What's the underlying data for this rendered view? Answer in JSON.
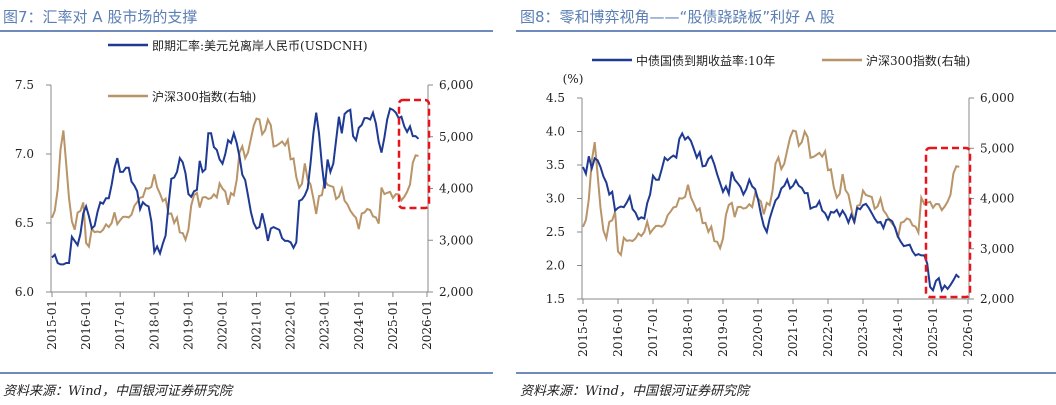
{
  "charts": [
    {
      "title": "图7：汇率对 A 股市场的支撑",
      "source": "资料来源：Wind，中国银河证券研究院"
    },
    {
      "title": "图8：零和博弈视角——“股债跷跷板”利好 A 股",
      "source": "资料来源：Wind，中国银河证券研究院"
    }
  ],
  "chart_data": [
    {
      "type": "line",
      "title": "图7：汇率对 A 股市场的支撑",
      "x_start": "2015-01",
      "x_frequency": "monthly",
      "x_ticks": [
        "2015-01",
        "2016-01",
        "2017-01",
        "2018-01",
        "2019-01",
        "2020-01",
        "2021-01",
        "2022-01",
        "2023-01",
        "2024-01",
        "2025-01",
        "2026-01"
      ],
      "y_left": {
        "lim": [
          6.0,
          7.5
        ],
        "ticks": [
          "6.0",
          "6.5",
          "7.0",
          "7.5"
        ]
      },
      "y_right": {
        "lim": [
          2000,
          6000
        ],
        "ticks": [
          "2,000",
          "3,000",
          "4,000",
          "5,000",
          "6,000"
        ]
      },
      "legend": "top",
      "highlight": "2025-03 to 2025-12 (red dashed box)",
      "series": [
        {
          "name": "即期汇率:美元兑离岸人民币(USDCNH)",
          "axis": "left",
          "color": "#1f3a93",
          "values": [
            6.25,
            6.27,
            6.21,
            6.2,
            6.2,
            6.21,
            6.21,
            6.4,
            6.37,
            6.34,
            6.42,
            6.57,
            6.62,
            6.55,
            6.46,
            6.48,
            6.58,
            6.65,
            6.64,
            6.68,
            6.68,
            6.78,
            6.9,
            6.97,
            6.87,
            6.87,
            6.9,
            6.9,
            6.8,
            6.77,
            6.73,
            6.6,
            6.65,
            6.63,
            6.62,
            6.51,
            6.29,
            6.33,
            6.28,
            6.35,
            6.41,
            6.63,
            6.82,
            6.83,
            6.87,
            6.97,
            6.94,
            6.86,
            6.71,
            6.69,
            6.73,
            6.74,
            6.95,
            6.87,
            6.89,
            7.15,
            7.15,
            7.05,
            7.03,
            6.96,
            6.93,
            7.0,
            7.1,
            7.08,
            7.15,
            7.08,
            6.98,
            6.85,
            6.81,
            6.7,
            6.58,
            6.5,
            6.46,
            6.47,
            6.57,
            6.48,
            6.37,
            6.46,
            6.47,
            6.46,
            6.45,
            6.39,
            6.37,
            6.37,
            6.36,
            6.32,
            6.36,
            6.66,
            6.67,
            6.7,
            6.75,
            6.93,
            7.15,
            7.3,
            7.15,
            6.92,
            6.75,
            6.96,
            6.87,
            6.93,
            7.1,
            7.27,
            7.15,
            7.29,
            7.31,
            7.32,
            7.13,
            7.1,
            7.19,
            7.21,
            7.26,
            7.26,
            7.25,
            7.3,
            7.22,
            7.09,
            7.01,
            7.12,
            7.25,
            7.33,
            7.32,
            7.3,
            7.26,
            7.27,
            7.2,
            7.16,
            7.2,
            7.13,
            7.13,
            7.11
          ]
        },
        {
          "name": "沪深300指数(右轴)",
          "axis": "right",
          "color": "#b89468",
          "values": [
            3434,
            3572,
            3982,
            4749,
            5123,
            4473,
            3816,
            3366,
            3203,
            3534,
            3566,
            3731,
            2946,
            2877,
            3218,
            3157,
            3169,
            3154,
            3204,
            3306,
            3254,
            3336,
            3539,
            3310,
            3387,
            3452,
            3456,
            3439,
            3493,
            3666,
            3737,
            3822,
            3837,
            4006,
            3998,
            4031,
            4275,
            4023,
            3899,
            3756,
            3802,
            3510,
            3517,
            3335,
            3438,
            3153,
            3138,
            3011,
            3201,
            3670,
            3872,
            3913,
            3630,
            3826,
            3835,
            3799,
            3814,
            3887,
            3828,
            4097,
            3999,
            3940,
            3686,
            3912,
            3868,
            4164,
            4695,
            4816,
            4587,
            4695,
            4960,
            5211,
            5351,
            5336,
            5048,
            5123,
            5331,
            5224,
            4811,
            4828,
            4866,
            4908,
            4833,
            4940,
            4564,
            4582,
            4223,
            4016,
            4091,
            4485,
            4170,
            4079,
            3804,
            3508,
            3854,
            3872,
            4157,
            4069,
            4051,
            4029,
            3798,
            3842,
            4000,
            3765,
            3690,
            3573,
            3496,
            3431,
            3215,
            3516,
            3537,
            3604,
            3580,
            3462,
            3442,
            3321,
            4017,
            3891,
            3916,
            3935,
            3817,
            3891,
            3888,
            3770,
            3840,
            3936,
            4075,
            4497,
            4640,
            4630
          ]
        }
      ]
    },
    {
      "type": "line",
      "title": "图8：零和博弈视角——“股债跷跷板”利好 A 股",
      "x_start": "2015-01",
      "x_frequency": "monthly",
      "x_ticks": [
        "2015-01",
        "2016-01",
        "2017-01",
        "2018-01",
        "2019-01",
        "2020-01",
        "2021-01",
        "2022-01",
        "2023-01",
        "2024-01",
        "2025-01",
        "2026-01"
      ],
      "y_left": {
        "lim": [
          1.5,
          4.5
        ],
        "ticks": [
          "1.5",
          "2.0",
          "2.5",
          "3.0",
          "3.5",
          "4.0",
          "4.5"
        ],
        "unit": "(%)"
      },
      "y_right": {
        "lim": [
          2000,
          6000
        ],
        "ticks": [
          "2,000",
          "3,000",
          "4,000",
          "5,000",
          "6,000"
        ]
      },
      "legend": "top",
      "highlight": "2025-01 to 2025-12 (red dashed box)",
      "series": [
        {
          "name": "中债国债到期收益率:10年",
          "axis": "left",
          "color": "#1f3a93",
          "values": [
            3.47,
            3.37,
            3.63,
            3.45,
            3.6,
            3.57,
            3.47,
            3.33,
            3.24,
            3.06,
            3.1,
            2.82,
            2.86,
            2.88,
            2.87,
            2.94,
            3.03,
            2.84,
            2.79,
            2.69,
            2.72,
            2.7,
            2.93,
            3.06,
            3.34,
            3.28,
            3.28,
            3.44,
            3.61,
            3.57,
            3.61,
            3.64,
            3.61,
            3.89,
            3.97,
            3.88,
            3.92,
            3.86,
            3.74,
            3.61,
            3.69,
            3.48,
            3.49,
            3.59,
            3.63,
            3.51,
            3.36,
            3.23,
            3.1,
            3.18,
            3.07,
            3.4,
            3.28,
            3.23,
            3.17,
            3.06,
            3.14,
            3.28,
            3.18,
            3.14,
            2.99,
            2.77,
            2.59,
            2.5,
            2.7,
            2.84,
            2.97,
            3.02,
            3.15,
            3.19,
            3.28,
            3.15,
            3.19,
            3.27,
            3.19,
            3.16,
            3.08,
            3.08,
            2.85,
            2.87,
            2.88,
            2.96,
            2.82,
            2.78,
            2.69,
            2.8,
            2.79,
            2.83,
            2.74,
            2.82,
            2.75,
            2.64,
            2.76,
            2.65,
            2.86,
            2.84,
            2.9,
            2.92,
            2.86,
            2.78,
            2.7,
            2.64,
            2.65,
            2.56,
            2.68,
            2.69,
            2.66,
            2.56,
            2.43,
            2.35,
            2.29,
            2.3,
            2.31,
            2.21,
            2.15,
            2.17,
            2.15,
            2.15,
            2.03,
            1.68,
            1.63,
            1.77,
            1.81,
            1.63,
            1.7,
            1.65,
            1.71,
            1.78,
            1.86,
            1.82
          ]
        },
        {
          "name": "沪深300指数(右轴)",
          "axis": "right",
          "color": "#b89468",
          "values": [
            3434,
            3572,
            3982,
            4749,
            5123,
            4473,
            3816,
            3366,
            3203,
            3534,
            3566,
            3731,
            2946,
            2877,
            3218,
            3157,
            3169,
            3154,
            3204,
            3306,
            3254,
            3336,
            3539,
            3310,
            3387,
            3452,
            3456,
            3439,
            3493,
            3666,
            3737,
            3822,
            3837,
            4006,
            3998,
            4031,
            4275,
            4023,
            3899,
            3756,
            3802,
            3510,
            3517,
            3335,
            3438,
            3153,
            3138,
            3011,
            3201,
            3670,
            3872,
            3913,
            3630,
            3826,
            3835,
            3799,
            3814,
            3887,
            3828,
            4097,
            3999,
            3940,
            3686,
            3912,
            3868,
            4164,
            4695,
            4816,
            4587,
            4695,
            4960,
            5211,
            5351,
            5336,
            5048,
            5123,
            5331,
            5224,
            4811,
            4828,
            4866,
            4908,
            4833,
            4940,
            4564,
            4582,
            4223,
            4016,
            4091,
            4485,
            4170,
            4079,
            3804,
            3508,
            3854,
            3872,
            4157,
            4069,
            4051,
            4029,
            3798,
            3842,
            4000,
            3765,
            3690,
            3573,
            3496,
            3431,
            3215,
            3516,
            3537,
            3604,
            3580,
            3462,
            3442,
            3321,
            4017,
            3891,
            3916,
            3935,
            3817,
            3891,
            3888,
            3770,
            3840,
            3936,
            4075,
            4497,
            4640,
            4630
          ]
        }
      ]
    }
  ]
}
